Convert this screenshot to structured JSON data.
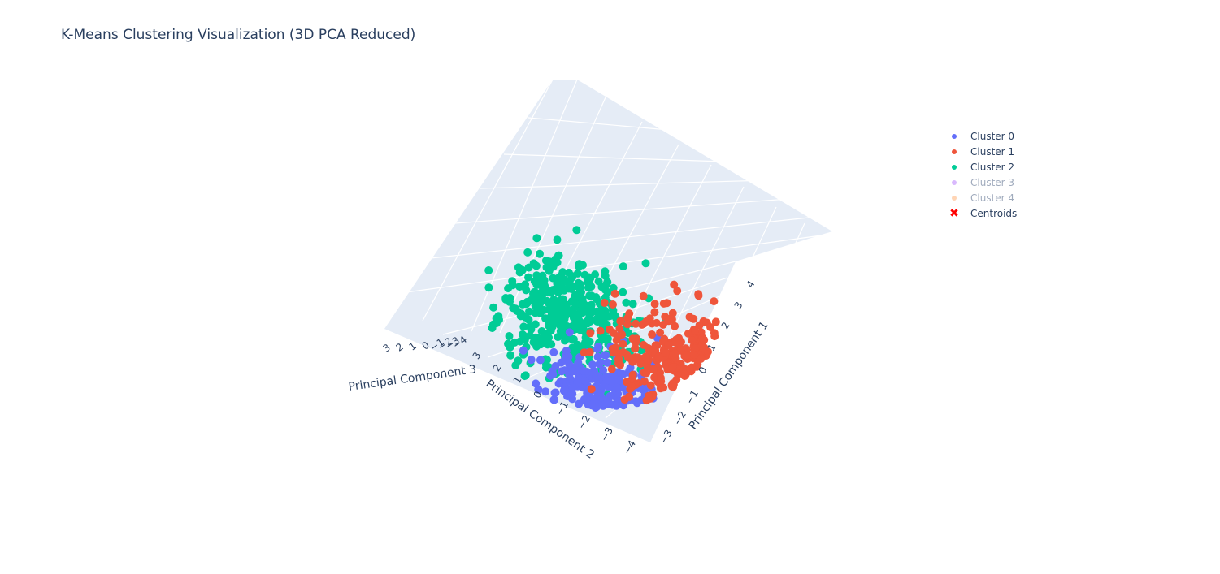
{
  "chart_data": {
    "type": "scatter",
    "mode": "3d",
    "title": "K-Means Clustering Visualization (3D PCA Reduced)",
    "axes": {
      "x": {
        "label": "Principal Component 1",
        "ticks": [
          "−3",
          "−2",
          "−1",
          "0",
          "1",
          "2",
          "3",
          "4"
        ],
        "range": [
          -3.5,
          4.5
        ]
      },
      "y": {
        "label": "Principal Component 2",
        "ticks": [
          "3",
          "2",
          "1",
          "0",
          "−1",
          "−2",
          "−3",
          "−4"
        ],
        "range": [
          -4.5,
          3.5
        ]
      },
      "z": {
        "label": "Principal Component 3",
        "ticks": [
          "3",
          "2",
          "1",
          "0",
          "−1",
          "−2",
          "−3",
          "−4"
        ],
        "range": [
          -4.5,
          3.5
        ]
      }
    },
    "grid": true,
    "legend_position": "top-right",
    "series": [
      {
        "name": "Cluster 0",
        "color": "#636efa",
        "visible": true,
        "approx_center": [
          -1.6,
          -0.8,
          0.2
        ],
        "spread": 1.0,
        "count": 1500
      },
      {
        "name": "Cluster 1",
        "color": "#ef553b",
        "visible": true,
        "approx_center": [
          1.3,
          -1.5,
          -0.5
        ],
        "spread": 1.0,
        "count": 1500
      },
      {
        "name": "Cluster 2",
        "color": "#00cc96",
        "visible": true,
        "approx_center": [
          0.2,
          1.9,
          0.3
        ],
        "spread": 1.0,
        "count": 1500
      },
      {
        "name": "Cluster 3",
        "color": "#ab63fa",
        "visible": false
      },
      {
        "name": "Cluster 4",
        "color": "#ffa15a",
        "visible": false
      },
      {
        "name": "Centroids",
        "color": "#ff0000",
        "symbol": "x",
        "visible": true
      }
    ]
  }
}
